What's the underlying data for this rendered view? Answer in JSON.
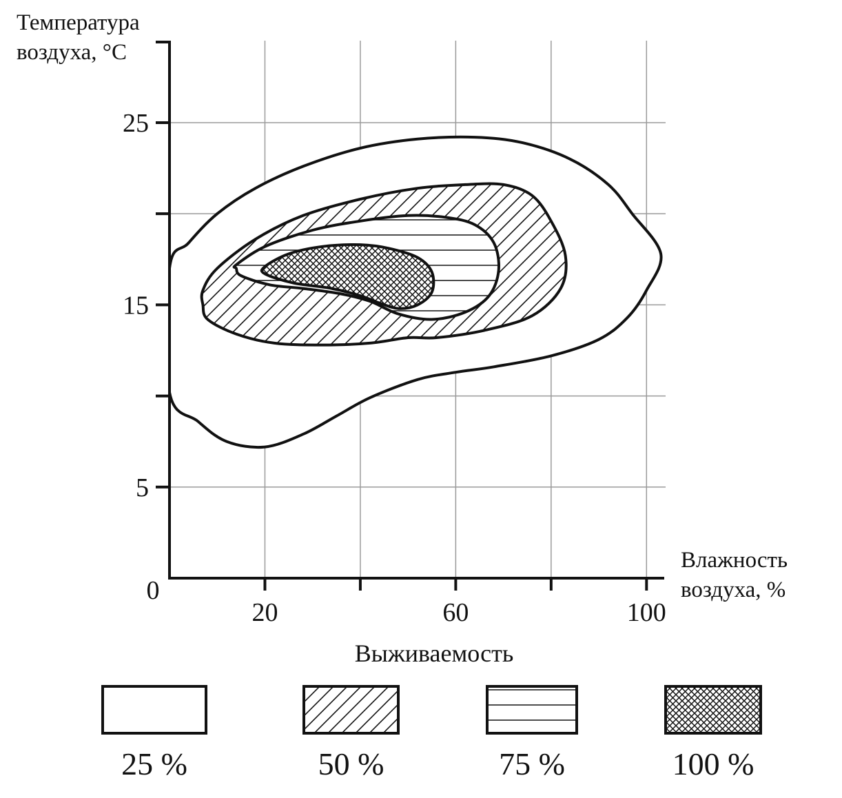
{
  "chart_data": {
    "type": "area",
    "ylabel_lines": [
      "Температура",
      "воздуха, °C"
    ],
    "xlabel_lines": [
      "Влажность",
      "воздуха, %"
    ],
    "x_ticks": [
      0,
      20,
      60,
      100
    ],
    "y_ticks": [
      5,
      15,
      25
    ],
    "xlim": [
      0,
      104
    ],
    "ylim": [
      0,
      29.5
    ],
    "grid": true,
    "legend_title": "Выживаемость",
    "legend_position": "bottom",
    "series": [
      {
        "name": "25 %",
        "pattern": "none",
        "x": [
          0,
          4,
          10,
          18,
          28,
          40,
          52,
          64,
          74,
          84,
          92,
          97,
          103,
          100,
          96,
          90,
          80,
          68,
          60,
          52,
          42,
          35,
          28,
          20,
          12,
          6,
          0
        ],
        "y": [
          17.0,
          18.4,
          20.0,
          21.4,
          22.6,
          23.6,
          24.1,
          24.2,
          23.9,
          23.0,
          21.6,
          20.0,
          17.8,
          15.8,
          14.3,
          13.1,
          12.2,
          11.6,
          11.3,
          10.9,
          9.9,
          8.9,
          7.9,
          7.2,
          7.5,
          8.6,
          10.2
        ]
      },
      {
        "name": "50 %",
        "pattern": "diagonal",
        "x": [
          7,
          10,
          18,
          28,
          40,
          52,
          62,
          70,
          76,
          80,
          83,
          82,
          76,
          66,
          56,
          50,
          42,
          32,
          22,
          14,
          8,
          7
        ],
        "y": [
          15.8,
          17.0,
          18.6,
          19.9,
          20.8,
          21.4,
          21.6,
          21.6,
          21.0,
          19.6,
          17.7,
          15.9,
          14.4,
          13.6,
          13.2,
          13.2,
          12.9,
          12.8,
          12.9,
          13.4,
          14.2,
          15.0
        ]
      },
      {
        "name": "75 %",
        "pattern": "horizontal",
        "x": [
          14,
          20,
          30,
          40,
          50,
          58,
          64,
          68,
          69,
          67,
          62,
          55,
          48,
          42,
          36,
          28,
          21,
          15,
          14
        ],
        "y": [
          17.2,
          18.2,
          19.1,
          19.6,
          19.9,
          19.8,
          19.4,
          18.4,
          16.9,
          15.5,
          14.6,
          14.2,
          14.5,
          15.2,
          15.6,
          15.9,
          16.1,
          16.6,
          17.0
        ]
      },
      {
        "name": "100 %",
        "pattern": "crosshatch",
        "x": [
          20,
          25,
          32,
          40,
          46,
          52,
          55,
          55,
          52,
          48,
          44,
          40,
          34,
          26,
          20
        ],
        "y": [
          17.1,
          17.8,
          18.2,
          18.3,
          18.1,
          17.6,
          16.8,
          15.7,
          15.0,
          14.8,
          15.1,
          15.5,
          15.9,
          16.2,
          16.7
        ]
      }
    ]
  }
}
